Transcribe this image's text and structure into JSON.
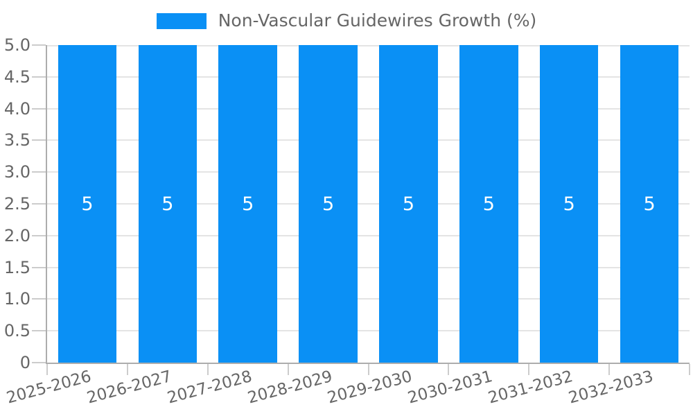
{
  "chart_data": {
    "type": "bar",
    "title": "Non-Vascular Guidewires Growth (%)",
    "legend": {
      "position": "top-center",
      "entries": [
        {
          "label": "Non-Vascular Guidewires Growth (%)",
          "color": "#0a90f5"
        }
      ]
    },
    "categories": [
      "2025-2026",
      "2026-2027",
      "2027-2028",
      "2028-2029",
      "2029-2030",
      "2030-2031",
      "2031-2032",
      "2032-2033"
    ],
    "series": [
      {
        "name": "Non-Vascular Guidewires Growth (%)",
        "color": "#0a90f5",
        "values": [
          5,
          5,
          5,
          5,
          5,
          5,
          5,
          5
        ]
      }
    ],
    "value_labels": [
      "5",
      "5",
      "5",
      "5",
      "5",
      "5",
      "5",
      "5"
    ],
    "xlabel": "",
    "ylabel": "",
    "ylim": [
      0,
      5
    ],
    "ytick_labels": [
      "0",
      "0.5",
      "1.0",
      "1.5",
      "2.0",
      "2.5",
      "3.0",
      "3.5",
      "4.0",
      "4.5",
      "5.0"
    ],
    "grid": true,
    "styles": {
      "bar_color": "#0a90f5",
      "grid_color": "#e4e4e4",
      "axis_color": "#adadad",
      "tick_color": "#cccccc",
      "label_color": "#666666",
      "value_label_color": "#ffffff",
      "background": "#ffffff"
    }
  }
}
